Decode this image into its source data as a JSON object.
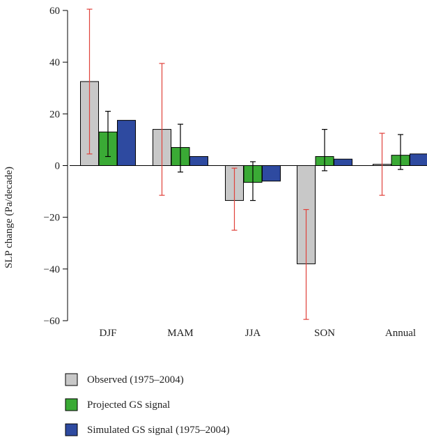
{
  "chart_data": {
    "type": "bar",
    "xlabel": "",
    "ylabel": "SLP change (Pa/decade)",
    "ylim": [
      -60,
      60
    ],
    "yticks": [
      "60",
      "40",
      "20",
      "0",
      "−20",
      "−40",
      "−60"
    ],
    "ytick_values": [
      60,
      40,
      20,
      0,
      -20,
      -40,
      -60
    ],
    "categories": [
      "DJF",
      "MAM",
      "JJA",
      "SON",
      "Annual"
    ],
    "series": [
      {
        "name": "Observed (1975–2004)",
        "color": "#c8c8c8",
        "values": [
          32.5,
          14,
          -13.5,
          -38,
          0.5
        ],
        "error_low": [
          4.5,
          -11.5,
          -25,
          -59.5,
          -11.5
        ],
        "error_high": [
          60.5,
          39.5,
          -1,
          -17,
          12.5
        ],
        "error_color": "#e0413a"
      },
      {
        "name": "Projected GS signal",
        "color": "#3aaa35",
        "values": [
          13,
          7,
          -6.5,
          3.5,
          4
        ],
        "error_low": [
          3.5,
          -2.5,
          -13.5,
          -2,
          -1.5
        ],
        "error_high": [
          21,
          16,
          1.5,
          14,
          12
        ],
        "error_color": "#000000"
      },
      {
        "name": "Simulated GS signal (1975–2004)",
        "color": "#2e4aa0",
        "values": [
          17.5,
          3.5,
          -6,
          2.5,
          4.5
        ]
      }
    ],
    "grid": false,
    "legend_position": "bottom"
  }
}
